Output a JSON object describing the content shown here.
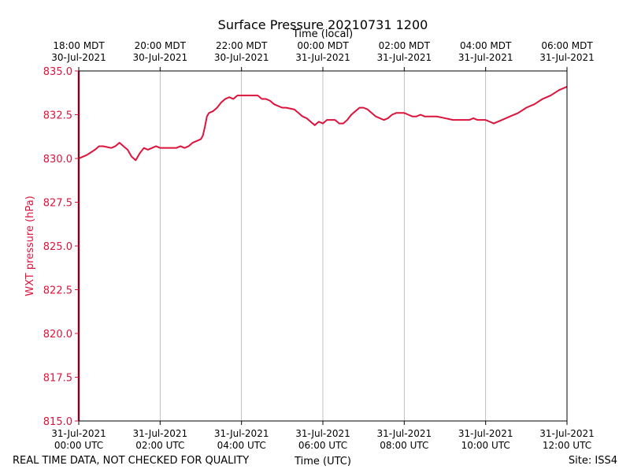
{
  "chart_data": {
    "type": "line",
    "title": "Surface Pressure 20210731 1200",
    "xlabel": "Time (UTC)",
    "x2label": "Time (local)",
    "ylabel": "WXT pressure (hPa)",
    "ylim": [
      815.0,
      835.0
    ],
    "xlim_hours_utc": [
      0,
      12
    ],
    "grid": "vertical",
    "y_ticks": [
      "815.0",
      "817.5",
      "820.0",
      "822.5",
      "825.0",
      "827.5",
      "830.0",
      "832.5",
      "835.0"
    ],
    "x_ticks_utc": [
      {
        "h": 0,
        "date": "31-Jul-2021",
        "time": "00:00 UTC"
      },
      {
        "h": 2,
        "date": "31-Jul-2021",
        "time": "02:00 UTC"
      },
      {
        "h": 4,
        "date": "31-Jul-2021",
        "time": "04:00 UTC"
      },
      {
        "h": 6,
        "date": "31-Jul-2021",
        "time": "06:00 UTC"
      },
      {
        "h": 8,
        "date": "31-Jul-2021",
        "time": "08:00 UTC"
      },
      {
        "h": 10,
        "date": "31-Jul-2021",
        "time": "10:00 UTC"
      },
      {
        "h": 12,
        "date": "31-Jul-2021",
        "time": "12:00 UTC"
      }
    ],
    "x_ticks_local": [
      {
        "h": 0,
        "time": "18:00 MDT",
        "date": "30-Jul-2021"
      },
      {
        "h": 2,
        "time": "20:00 MDT",
        "date": "30-Jul-2021"
      },
      {
        "h": 4,
        "time": "22:00 MDT",
        "date": "30-Jul-2021"
      },
      {
        "h": 6,
        "time": "00:00 MDT",
        "date": "31-Jul-2021"
      },
      {
        "h": 8,
        "time": "02:00 MDT",
        "date": "31-Jul-2021"
      },
      {
        "h": 10,
        "time": "04:00 MDT",
        "date": "31-Jul-2021"
      },
      {
        "h": 12,
        "time": "06:00 MDT",
        "date": "31-Jul-2021"
      }
    ],
    "series": [
      {
        "name": "WXT pressure",
        "color": "#dc143c",
        "x_hours": [
          0,
          0.1,
          0.2,
          0.3,
          0.4,
          0.5,
          0.6,
          0.8,
          0.9,
          1.0,
          1.1,
          1.2,
          1.3,
          1.4,
          1.5,
          1.6,
          1.7,
          1.8,
          1.9,
          2.0,
          2.2,
          2.4,
          2.5,
          2.6,
          2.7,
          2.8,
          2.9,
          3.0,
          3.05,
          3.1,
          3.15,
          3.2,
          3.3,
          3.4,
          3.5,
          3.6,
          3.7,
          3.8,
          3.9,
          4.0,
          4.2,
          4.4,
          4.5,
          4.6,
          4.7,
          4.8,
          4.9,
          5.0,
          5.1,
          5.3,
          5.4,
          5.5,
          5.6,
          5.7,
          5.8,
          5.9,
          6.0,
          6.1,
          6.3,
          6.4,
          6.5,
          6.6,
          6.7,
          6.8,
          6.9,
          7.0,
          7.1,
          7.2,
          7.3,
          7.4,
          7.5,
          7.6,
          7.7,
          7.8,
          8.0,
          8.1,
          8.2,
          8.3,
          8.4,
          8.5,
          8.6,
          8.8,
          9.0,
          9.2,
          9.4,
          9.5,
          9.6,
          9.7,
          9.8,
          10.0,
          10.1,
          10.2,
          10.4,
          10.5,
          10.6,
          10.8,
          11.0,
          11.2,
          11.4,
          11.6,
          11.8,
          12.0
        ],
        "values": [
          830.0,
          830.1,
          830.2,
          830.35,
          830.5,
          830.7,
          830.7,
          830.6,
          830.7,
          830.9,
          830.7,
          830.5,
          830.1,
          829.9,
          830.3,
          830.6,
          830.5,
          830.6,
          830.7,
          830.6,
          830.6,
          830.6,
          830.7,
          830.6,
          830.7,
          830.9,
          831.0,
          831.1,
          831.3,
          831.8,
          832.4,
          832.6,
          832.7,
          832.9,
          833.2,
          833.4,
          833.5,
          833.4,
          833.6,
          833.6,
          833.6,
          833.6,
          833.4,
          833.4,
          833.3,
          833.1,
          833.0,
          832.9,
          832.9,
          832.8,
          832.6,
          832.4,
          832.3,
          832.1,
          831.9,
          832.1,
          832.0,
          832.2,
          832.2,
          832.0,
          832.0,
          832.2,
          832.5,
          832.7,
          832.9,
          832.9,
          832.8,
          832.6,
          832.4,
          832.3,
          832.2,
          832.3,
          832.5,
          832.6,
          832.6,
          832.5,
          832.4,
          832.4,
          832.5,
          832.4,
          832.4,
          832.4,
          832.3,
          832.2,
          832.2,
          832.2,
          832.2,
          832.3,
          832.2,
          832.2,
          832.1,
          832.0,
          832.2,
          832.3,
          832.4,
          832.6,
          832.9,
          833.1,
          833.4,
          833.6,
          833.9,
          834.1
        ]
      }
    ],
    "footer_left": "REAL TIME DATA, NOT CHECKED FOR QUALITY",
    "footer_right": "Site: ISS4"
  }
}
